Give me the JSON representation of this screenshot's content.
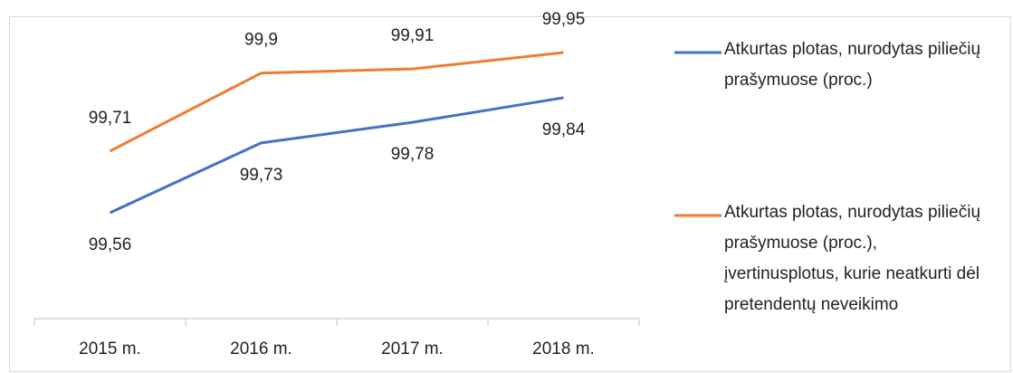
{
  "chart_data": {
    "type": "line",
    "categories": [
      "2015 m.",
      "2016 m.",
      "2017 m.",
      "2018 m."
    ],
    "series": [
      {
        "name": "Atkurtas plotas, nurodytas piliečių prašymuose (proc.)",
        "color": "#4472c4",
        "values": [
          99.56,
          99.73,
          99.78,
          99.84
        ],
        "value_labels": [
          "99,56",
          "99,73",
          "99,78",
          "99,84"
        ]
      },
      {
        "name": "Atkurtas plotas, nurodytas piliečių prašymuose (proc.), įvertinusplotus, kurie neatkurti dėl pretendentų neveikimo",
        "color": "#ed7d31",
        "values": [
          99.71,
          99.9,
          99.91,
          99.95
        ],
        "value_labels": [
          "99,71",
          "99,9",
          "99,91",
          "99,95"
        ]
      }
    ]
  }
}
